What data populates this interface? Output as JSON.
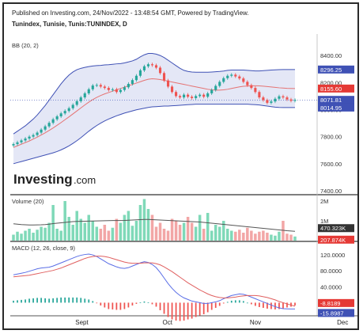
{
  "header": {
    "published": "Published on Investing.com, 24/Nov/2022 - 13:48:54 GMT, Powered by TradingView.",
    "symbol": "Tunindex, Tunisie, Tunis:TUNINDEX, D"
  },
  "watermark": "Investing.com",
  "colors": {
    "up": "#26a69a",
    "down": "#ef5350",
    "bb_band": "#3f51b5",
    "bb_fill": "#dfe3f5",
    "bb_mid": "#e57373",
    "macd_line": "#5a6ee6",
    "signal_line": "#e06060",
    "vol_up": "#7fd9b8",
    "vol_down": "#f2a6a6",
    "vol_ma": "#555555"
  },
  "chart_data": [
    {
      "type": "candlestick",
      "indicator_label": "BB (20, 2)",
      "ylim": [
        7400,
        8500
      ],
      "y_ticks": [
        "8400.00",
        "8200.00",
        "8000.00",
        "7800.00",
        "7600.00",
        "7400.00"
      ],
      "x_ticks": [
        "Sept",
        "Oct",
        "Nov",
        "Dec"
      ],
      "price_badges": [
        {
          "value": "8296.25",
          "color": "#3f51b5"
        },
        {
          "value": "8155.60",
          "color": "#e53935"
        },
        {
          "value": "8071.81",
          "color": "#3f51b5"
        },
        {
          "value": "8014.95",
          "color": "#3f51b5"
        }
      ],
      "close": [
        7745,
        7758,
        7772,
        7786,
        7800,
        7812,
        7830,
        7852,
        7876,
        7902,
        7928,
        7950,
        7972,
        7990,
        8010,
        8035,
        8062,
        8090,
        8120,
        8150,
        8178,
        8182,
        8170,
        8160,
        8145,
        8150,
        8130,
        8145,
        8165,
        8190,
        8218,
        8250,
        8290,
        8320,
        8335,
        8328,
        8310,
        8270,
        8215,
        8170,
        8130,
        8100,
        8090,
        8110,
        8095,
        8085,
        8100,
        8110,
        8095,
        8120,
        8145,
        8175,
        8205,
        8232,
        8250,
        8258,
        8245,
        8230,
        8205,
        8180,
        8160,
        8130,
        8090,
        8070,
        8050,
        8060,
        8080,
        8098,
        8090,
        8075,
        8065,
        8071
      ],
      "bb_upper": [
        7820,
        7840,
        7860,
        7880,
        7905,
        7930,
        7960,
        7995,
        8030,
        8070,
        8110,
        8150,
        8190,
        8225,
        8255,
        8278,
        8295,
        8305,
        8312,
        8318,
        8322,
        8325,
        8327,
        8330,
        8332,
        8335,
        8338,
        8340,
        8345,
        8352,
        8360,
        8372,
        8390,
        8405,
        8415,
        8415,
        8410,
        8400,
        8385,
        8365,
        8345,
        8325,
        8305,
        8290,
        8282,
        8278,
        8276,
        8276,
        8276,
        8276,
        8278,
        8280,
        8282,
        8285,
        8290,
        8292,
        8292,
        8292,
        8292,
        8290,
        8288,
        8286,
        8286,
        8288,
        8290,
        8292,
        8294,
        8295,
        8296,
        8296,
        8296,
        8296
      ],
      "bb_mid": [
        7720,
        7732,
        7744,
        7756,
        7768,
        7782,
        7796,
        7812,
        7828,
        7846,
        7864,
        7884,
        7904,
        7925,
        7946,
        7968,
        7990,
        8012,
        8034,
        8055,
        8074,
        8090,
        8104,
        8116,
        8126,
        8136,
        8146,
        8156,
        8166,
        8176,
        8186,
        8196,
        8206,
        8216,
        8224,
        8228,
        8226,
        8222,
        8216,
        8210,
        8204,
        8198,
        8192,
        8186,
        8180,
        8174,
        8168,
        8162,
        8156,
        8150,
        8146,
        8144,
        8144,
        8146,
        8150,
        8156,
        8162,
        8168,
        8172,
        8174,
        8176,
        8176,
        8175,
        8173,
        8170,
        8167,
        8164,
        8161,
        8159,
        8157,
        8156,
        8155.6
      ],
      "bb_lower": [
        7600,
        7608,
        7616,
        7624,
        7632,
        7640,
        7648,
        7656,
        7664,
        7672,
        7680,
        7690,
        7702,
        7716,
        7732,
        7750,
        7770,
        7792,
        7816,
        7840,
        7862,
        7882,
        7900,
        7916,
        7930,
        7942,
        7954,
        7964,
        7974,
        7982,
        7990,
        7998,
        8004,
        8010,
        8016,
        8020,
        8022,
        8024,
        8026,
        8026,
        8028,
        8030,
        8032,
        8034,
        8036,
        8038,
        8040,
        8040,
        8040,
        8040,
        8040,
        8040,
        8040,
        8040,
        8040,
        8040,
        8040,
        8040,
        8040,
        8040,
        8038,
        8036,
        8034,
        8030,
        8026,
        8022,
        8018,
        8016,
        8015,
        8015,
        8015,
        8014.95
      ]
    },
    {
      "type": "bar",
      "indicator_label": "Volume (20)",
      "ylim": [
        0,
        2200000
      ],
      "y_ticks": [
        "2M",
        "1M"
      ],
      "price_badges": [
        {
          "value": "470.323K",
          "color": "#333333"
        },
        {
          "value": "207.874K",
          "color": "#e53935"
        }
      ],
      "values": [
        300000,
        450000,
        350000,
        500000,
        600000,
        400000,
        550000,
        700000,
        650000,
        900000,
        1800000,
        600000,
        500000,
        2000000,
        1200000,
        800000,
        1500000,
        1100000,
        900000,
        1300000,
        1000000,
        700000,
        600000,
        800000,
        500000,
        650000,
        1100000,
        900000,
        1300000,
        1500000,
        750000,
        1000000,
        1800000,
        2100000,
        1600000,
        1300000,
        700000,
        900000,
        600000,
        500000,
        1100000,
        1000000,
        800000,
        900000,
        1200000,
        900000,
        700000,
        1300000,
        600000,
        1400000,
        500000,
        800000,
        700000,
        1000000,
        600000,
        500000,
        450000,
        550000,
        400000,
        650000,
        500000,
        350000,
        450000,
        500000,
        400000,
        300000,
        250000,
        450000,
        1000000,
        350000,
        300000,
        207874
      ],
      "ma": [
        850000,
        830000,
        810000,
        800000,
        790000,
        790000,
        795000,
        800000,
        810000,
        830000,
        860000,
        880000,
        900000,
        920000,
        940000,
        960000,
        970000,
        975000,
        980000,
        985000,
        990000,
        995000,
        1000000,
        1005000,
        1010000,
        1015000,
        1015000,
        1015000,
        1020000,
        1030000,
        1040000,
        1050000,
        1060000,
        1070000,
        1070000,
        1060000,
        1050000,
        1040000,
        1030000,
        1020000,
        1010000,
        1000000,
        990000,
        980000,
        970000,
        960000,
        950000,
        940000,
        920000,
        900000,
        880000,
        860000,
        840000,
        820000,
        800000,
        780000,
        760000,
        740000,
        720000,
        700000,
        680000,
        660000,
        640000,
        620000,
        600000,
        580000,
        560000,
        540000,
        520000,
        500000,
        485000,
        470323
      ]
    },
    {
      "type": "line",
      "indicator_label": "MACD (12, 26, close, 9)",
      "ylim": [
        -25,
        140
      ],
      "y_ticks": [
        "120.0000",
        "80.0000",
        "40.0000"
      ],
      "price_badges": [
        {
          "value": "-8.8189",
          "color": "#e53935"
        },
        {
          "value": "-15.8987",
          "color": "#3f51b5"
        }
      ],
      "macd": [
        70,
        72,
        74,
        76,
        79,
        82,
        85,
        87,
        88,
        89,
        92,
        96,
        100,
        104,
        108,
        112,
        116,
        119,
        121,
        122,
        120,
        116,
        110,
        104,
        98,
        94,
        90,
        87,
        86,
        88,
        92,
        96,
        100,
        103,
        101,
        96,
        88,
        76,
        62,
        48,
        36,
        26,
        18,
        12,
        8,
        4,
        2,
        0,
        -2,
        -2,
        0,
        2,
        5,
        10,
        14,
        18,
        20,
        22,
        21,
        18,
        14,
        10,
        6,
        2,
        -2,
        -6,
        -10,
        -13,
        -15,
        -15.5,
        -15.8,
        -15.8987
      ],
      "signal": [
        65,
        66,
        67,
        68,
        69,
        71,
        73,
        75,
        77,
        79,
        81,
        84,
        87,
        91,
        95,
        99,
        103,
        107,
        111,
        114,
        116,
        117,
        117,
        116,
        114,
        111,
        108,
        105,
        102,
        100,
        99,
        99,
        99,
        100,
        100,
        100,
        98,
        95,
        90,
        84,
        78,
        71,
        64,
        57,
        50,
        44,
        38,
        32,
        27,
        22,
        18,
        15,
        13,
        12,
        12,
        13,
        14,
        16,
        17,
        18,
        18,
        18,
        17,
        15,
        13,
        10,
        7,
        3,
        0,
        -3,
        -6,
        -8.8189
      ],
      "histogram": [
        5,
        6,
        7,
        8,
        10,
        11,
        12,
        12,
        11,
        10,
        11,
        12,
        13,
        13,
        13,
        13,
        13,
        12,
        10,
        8,
        4,
        -1,
        -7,
        -12,
        -16,
        -17,
        -18,
        -18,
        -16,
        -12,
        -7,
        -3,
        1,
        3,
        1,
        -4,
        -10,
        -19,
        -28,
        -36,
        -42,
        -45,
        -46,
        -45,
        -42,
        -40,
        -36,
        -32,
        -29,
        -24,
        -18,
        -13,
        -8,
        -2,
        2,
        5,
        6,
        6,
        4,
        0,
        -4,
        -8,
        -11,
        -13,
        -15,
        -16,
        -17,
        -16,
        -15,
        -12,
        -10,
        -7
      ]
    }
  ]
}
